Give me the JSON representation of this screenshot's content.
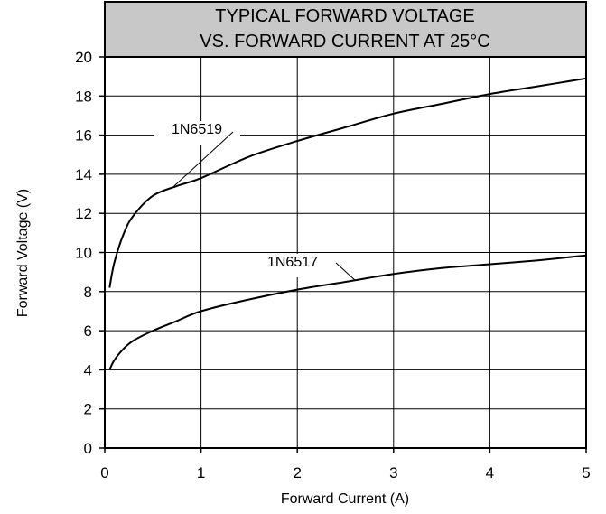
{
  "chart_data": {
    "type": "line",
    "title_lines": [
      "TYPICAL FORWARD VOLTAGE",
      "VS. FORWARD CURRENT AT 25°C"
    ],
    "xlabel": "Forward Current (A)",
    "ylabel": "Forward Voltage (V)",
    "xlim": [
      0,
      5
    ],
    "ylim": [
      0,
      20
    ],
    "x_ticks": [
      0,
      1,
      2,
      3,
      4,
      5
    ],
    "y_ticks": [
      0,
      2,
      4,
      6,
      8,
      10,
      12,
      14,
      16,
      18,
      20
    ],
    "grid": true,
    "legend": "none",
    "title_background": "#c8c8c8",
    "series": [
      {
        "name": "1N6519",
        "x": [
          0.05,
          0.1,
          0.2,
          0.3,
          0.5,
          0.75,
          1.0,
          1.5,
          2.0,
          2.5,
          3.0,
          3.5,
          4.0,
          4.5,
          5.0
        ],
        "y": [
          8.2,
          9.5,
          11.0,
          11.9,
          12.9,
          13.4,
          13.8,
          14.9,
          15.7,
          16.4,
          17.1,
          17.6,
          18.1,
          18.5,
          18.9
        ]
      },
      {
        "name": "1N6517",
        "x": [
          0.05,
          0.1,
          0.2,
          0.3,
          0.5,
          0.75,
          1.0,
          1.5,
          2.0,
          2.5,
          3.0,
          3.5,
          4.0,
          4.5,
          5.0
        ],
        "y": [
          4.0,
          4.5,
          5.1,
          5.5,
          6.0,
          6.5,
          7.0,
          7.6,
          8.1,
          8.5,
          8.9,
          9.2,
          9.4,
          9.6,
          9.85
        ]
      }
    ]
  }
}
